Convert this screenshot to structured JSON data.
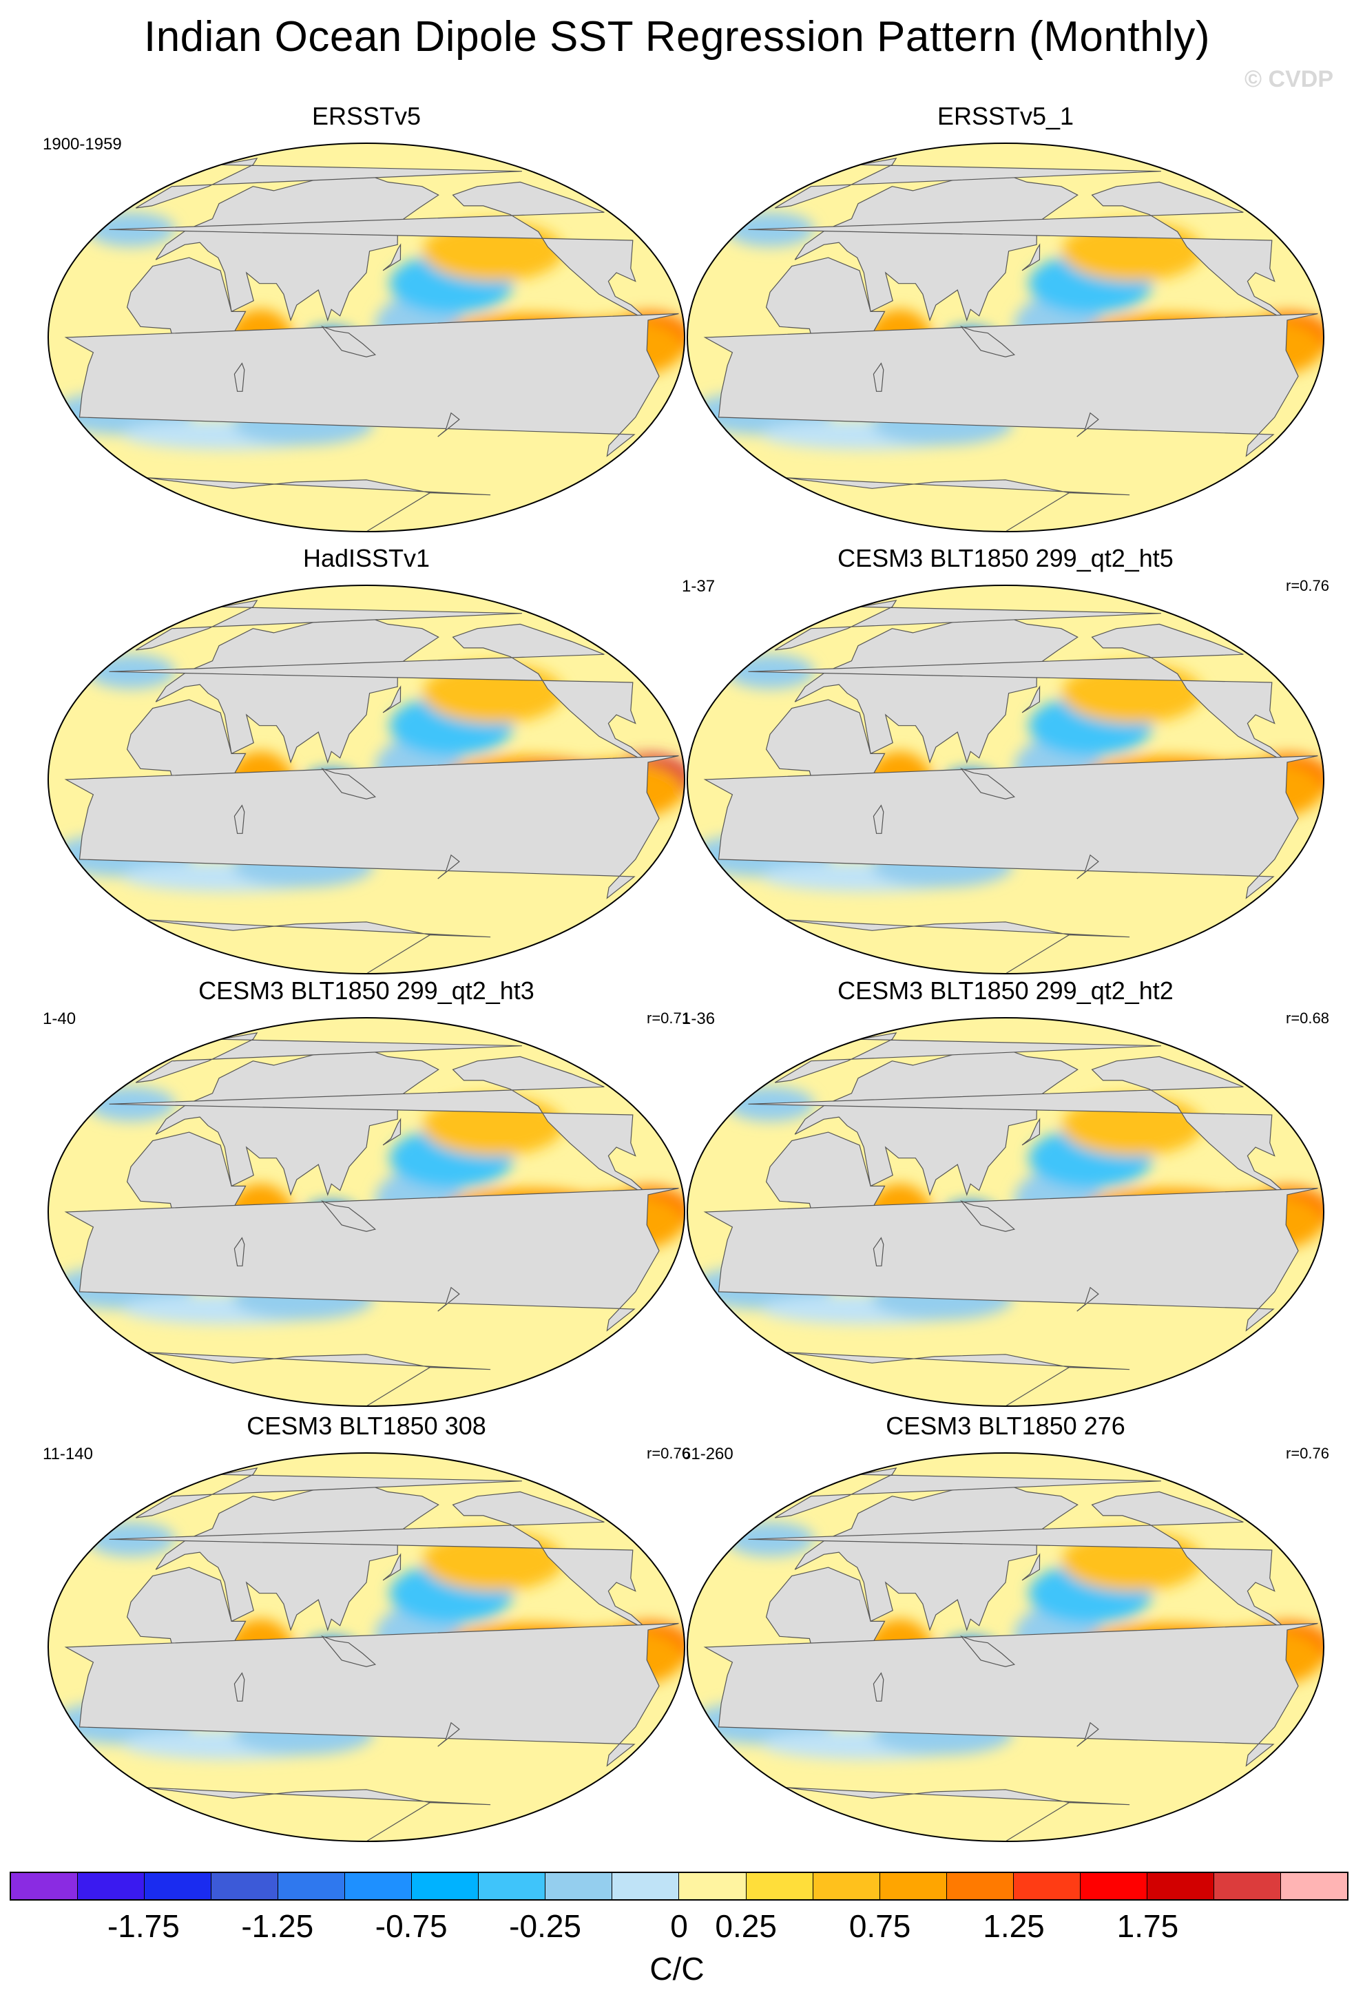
{
  "figure": {
    "title": "Indian Ocean Dipole SST Regression Pattern (Monthly)",
    "watermark": "© CVDP"
  },
  "panels": [
    {
      "title": "ERSSTv5",
      "left_label": "1900-1959",
      "right_label": ""
    },
    {
      "title": "ERSSTv5_1",
      "left_label": "",
      "right_label": ""
    },
    {
      "title": "HadISSTv1",
      "left_label": "",
      "right_label": ""
    },
    {
      "title": "CESM3 BLT1850 299_qt2_ht5",
      "left_label": "1-37",
      "right_label": "r=0.76"
    },
    {
      "title": "CESM3 BLT1850 299_qt2_ht3",
      "left_label": "1-40",
      "right_label": "r=0.71"
    },
    {
      "title": "CESM3 BLT1850 299_qt2_ht2",
      "left_label": "1-36",
      "right_label": "r=0.68"
    },
    {
      "title": "CESM3 BLT1850 308",
      "left_label": "11-140",
      "right_label": "r=0.76"
    },
    {
      "title": "CESM3 BLT1850 276",
      "left_label": "61-260",
      "right_label": "r=0.76"
    }
  ],
  "colorbar": {
    "units": "C/C",
    "tick_labels": [
      "-1.75",
      "-1.25",
      "-0.75",
      "-0.25",
      "0",
      "0.25",
      "0.75",
      "1.25",
      "1.75"
    ],
    "colors": [
      "#8a2be2",
      "#3a1af0",
      "#1a2cf0",
      "#3c5ad8",
      "#2f78ee",
      "#1e90ff",
      "#00b2ff",
      "#3fc4fa",
      "#94ceee",
      "#bfe3f7",
      "#fff4a0",
      "#ffde3a",
      "#ffc11c",
      "#ffa500",
      "#ff7a00",
      "#ff3c14",
      "#ff0000",
      "#d20000",
      "#dc3c3c",
      "#ffb4b4"
    ],
    "land_color": "#dcdcdc",
    "ocean_base_color": "#fff4a0"
  }
}
